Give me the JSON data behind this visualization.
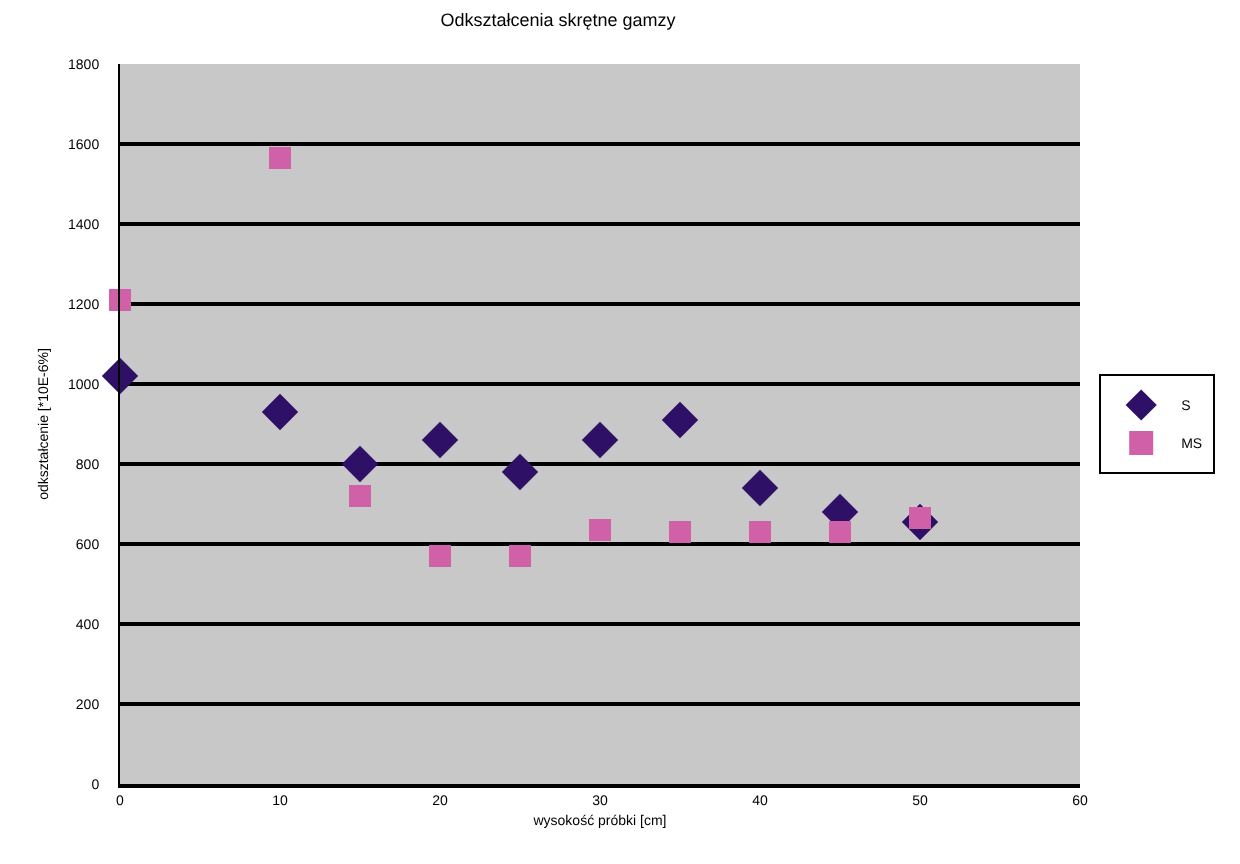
{
  "chart_data": {
    "type": "scatter",
    "title": "Odkształcenia skrętne gamzy",
    "xlabel": "wysokość próbki [cm]",
    "ylabel": "odkształcenie [*10E-6%]",
    "x": [
      0,
      10,
      15,
      20,
      25,
      30,
      35,
      40,
      45,
      50
    ],
    "series": [
      {
        "name": "S",
        "color": "#2e1066",
        "marker": "diamond",
        "values": [
          1020,
          930,
          800,
          860,
          780,
          860,
          910,
          740,
          680,
          655
        ]
      },
      {
        "name": "MS",
        "color": "#d060a8",
        "marker": "square",
        "values": [
          1210,
          1565,
          720,
          570,
          570,
          635,
          630,
          630,
          630,
          665
        ]
      }
    ],
    "xlim": [
      0,
      60
    ],
    "xticks": [
      0,
      10,
      20,
      30,
      40,
      50,
      60
    ],
    "ylim": [
      0,
      1800
    ],
    "yticks": [
      0,
      200,
      400,
      600,
      800,
      1000,
      1200,
      1400,
      1600,
      1800
    ],
    "grid": "y",
    "legend": "right"
  }
}
